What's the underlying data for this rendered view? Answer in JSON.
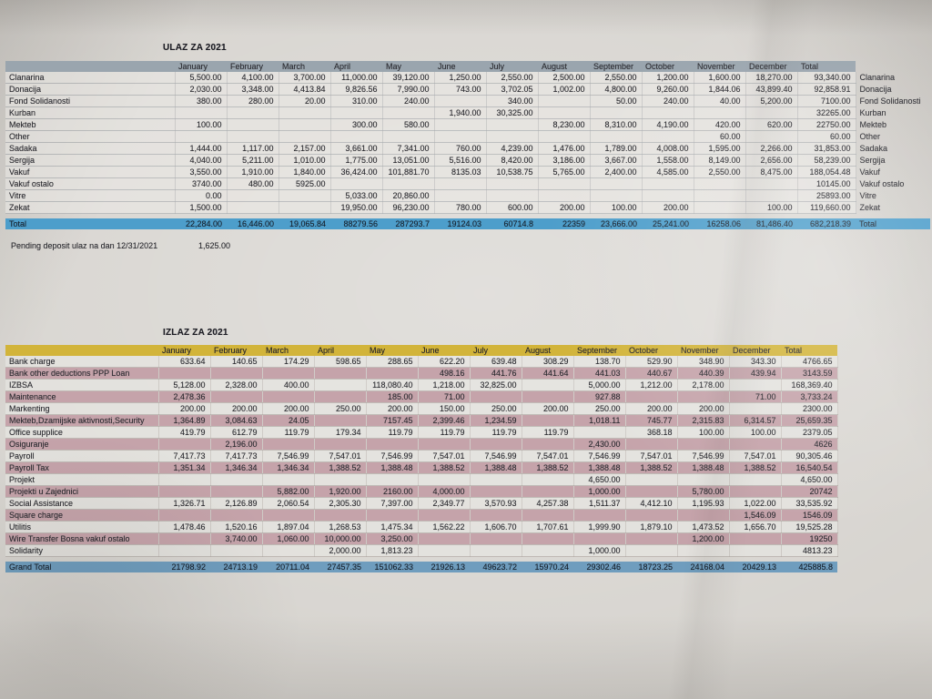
{
  "colors": {
    "paper": "#d5d2cd",
    "ink": "#2b2b30",
    "ulaz_header_bg": "#9aa5ae",
    "ulaz_total_bg": "#4d9ecb",
    "izlaz_header_bg": "#d2b43a",
    "izlaz_alt_bg": "#c5a3aa",
    "izlaz_total_bg": "#6f9dbe"
  },
  "months": [
    "January",
    "February",
    "March",
    "April",
    "May",
    "June",
    "July",
    "August",
    "September",
    "October",
    "November",
    "December"
  ],
  "ulaz": {
    "title": "ULAZ ZA 2021",
    "total_header": "Total",
    "rows": [
      {
        "label": "Clanarina",
        "values": [
          "5,500.00",
          "4,100.00",
          "3,700.00",
          "11,000.00",
          "39,120.00",
          "1,250.00",
          "2,550.00",
          "2,500.00",
          "2,550.00",
          "1,200.00",
          "1,600.00",
          "18,270.00"
        ],
        "total": "93,340.00"
      },
      {
        "label": "Donacija",
        "values": [
          "2,030.00",
          "3,348.00",
          "4,413.84",
          "9,826.56",
          "7,990.00",
          "743.00",
          "3,702.05",
          "1,002.00",
          "4,800.00",
          "9,260.00",
          "1,844.06",
          "43,899.40"
        ],
        "total": "92,858.91"
      },
      {
        "label": "Fond Solidanosti",
        "values": [
          "380.00",
          "280.00",
          "20.00",
          "310.00",
          "240.00",
          "",
          "340.00",
          "",
          "50.00",
          "240.00",
          "40.00",
          "5,200.00"
        ],
        "total": "7100.00"
      },
      {
        "label": "Kurban",
        "values": [
          "",
          "",
          "",
          "",
          "",
          "1,940.00",
          "30,325.00",
          "",
          "",
          "",
          "",
          ""
        ],
        "total": "32265.00"
      },
      {
        "label": "Mekteb",
        "values": [
          "100.00",
          "",
          "",
          "300.00",
          "580.00",
          "",
          "",
          "8,230.00",
          "8,310.00",
          "4,190.00",
          "420.00",
          "620.00"
        ],
        "total": "22750.00"
      },
      {
        "label": "Other",
        "values": [
          "",
          "",
          "",
          "",
          "",
          "",
          "",
          "",
          "",
          "",
          "60.00",
          ""
        ],
        "total": "60.00"
      },
      {
        "label": "Sadaka",
        "values": [
          "1,444.00",
          "1,117.00",
          "2,157.00",
          "3,661.00",
          "7,341.00",
          "760.00",
          "4,239.00",
          "1,476.00",
          "1,789.00",
          "4,008.00",
          "1,595.00",
          "2,266.00"
        ],
        "total": "31,853.00"
      },
      {
        "label": "Sergija",
        "values": [
          "4,040.00",
          "5,211.00",
          "1,010.00",
          "1,775.00",
          "13,051.00",
          "5,516.00",
          "8,420.00",
          "3,186.00",
          "3,667.00",
          "1,558.00",
          "8,149.00",
          "2,656.00"
        ],
        "total": "58,239.00"
      },
      {
        "label": "Vakuf",
        "values": [
          "3,550.00",
          "1,910.00",
          "1,840.00",
          "36,424.00",
          "101,881.70",
          "8135.03",
          "10,538.75",
          "5,765.00",
          "2,400.00",
          "4,585.00",
          "2,550.00",
          "8,475.00"
        ],
        "total": "188,054.48"
      },
      {
        "label": "Vakuf ostalo",
        "values": [
          "3740.00",
          "480.00",
          "5925.00",
          "",
          "",
          "",
          "",
          "",
          "",
          "",
          "",
          ""
        ],
        "total": "10145.00"
      },
      {
        "label": "Vitre",
        "values": [
          "0.00",
          "",
          "",
          "5,033.00",
          "20,860.00",
          "",
          "",
          "",
          "",
          "",
          "",
          ""
        ],
        "total": "25893.00"
      },
      {
        "label": "Zekat",
        "values": [
          "1,500.00",
          "",
          "",
          "19,950.00",
          "96,230.00",
          "780.00",
          "600.00",
          "200.00",
          "100.00",
          "200.00",
          "",
          "100.00"
        ],
        "total": "119,660.00"
      }
    ],
    "total_row": {
      "label": "Total",
      "values": [
        "22,284.00",
        "16,446.00",
        "19,065.84",
        "88279.56",
        "287293.7",
        "19124.03",
        "60714.8",
        "22359",
        "23,666.00",
        "25,241.00",
        "16258.06",
        "81,486.40"
      ],
      "total": "682,218.39",
      "label_right": "Total"
    },
    "pending": {
      "label": "Pending deposit ulaz na dan 12/31/2021",
      "value": "1,625.00"
    }
  },
  "izlaz": {
    "title": "IZLAZ ZA 2021",
    "total_header": "Total",
    "rows": [
      {
        "label": "Bank charge",
        "values": [
          "633.64",
          "140.65",
          "174.29",
          "598.65",
          "288.65",
          "622.20",
          "639.48",
          "308.29",
          "138.70",
          "529.90",
          "348.90",
          "343.30"
        ],
        "total": "4766.65"
      },
      {
        "label": "Bank other deductions PPP Loan",
        "values": [
          "",
          "",
          "",
          "",
          "",
          "498.16",
          "441.76",
          "441.64",
          "441.03",
          "440.67",
          "440.39",
          "439.94"
        ],
        "total": "3143.59"
      },
      {
        "label": "IZBSA",
        "values": [
          "5,128.00",
          "2,328.00",
          "400.00",
          "",
          "118,080.40",
          "1,218.00",
          "32,825.00",
          "",
          "5,000.00",
          "1,212.00",
          "2,178.00",
          ""
        ],
        "total": "168,369.40"
      },
      {
        "label": "Maintenance",
        "values": [
          "2,478.36",
          "",
          "",
          "",
          "185.00",
          "71.00",
          "",
          "",
          "927.88",
          "",
          "",
          "71.00"
        ],
        "total": "3,733.24"
      },
      {
        "label": "Markenting",
        "values": [
          "200.00",
          "200.00",
          "200.00",
          "250.00",
          "200.00",
          "150.00",
          "250.00",
          "200.00",
          "250.00",
          "200.00",
          "200.00",
          ""
        ],
        "total": "2300.00"
      },
      {
        "label": "Mekteb,Dzamijske aktivnosti,Security",
        "values": [
          "1,364.89",
          "3,084.63",
          "24.05",
          "",
          "7157.45",
          "2,399.46",
          "1,234.59",
          "",
          "1,018.11",
          "745.77",
          "2,315.83",
          "6,314.57"
        ],
        "total": "25,659.35"
      },
      {
        "label": "Office supplice",
        "values": [
          "419.79",
          "612.79",
          "119.79",
          "179.34",
          "119.79",
          "119.79",
          "119.79",
          "119.79",
          "",
          "368.18",
          "100.00",
          "100.00"
        ],
        "total": "2379.05"
      },
      {
        "label": "Osiguranje",
        "values": [
          "",
          "2,196.00",
          "",
          "",
          "",
          "",
          "",
          "",
          "2,430.00",
          "",
          "",
          ""
        ],
        "total": "4626"
      },
      {
        "label": "Payroll",
        "values": [
          "7,417.73",
          "7,417.73",
          "7,546.99",
          "7,547.01",
          "7,546.99",
          "7,547.01",
          "7,546.99",
          "7,547.01",
          "7,546.99",
          "7,547.01",
          "7,546.99",
          "7,547.01"
        ],
        "total": "90,305.46"
      },
      {
        "label": "Payroll Tax",
        "values": [
          "1,351.34",
          "1,346.34",
          "1,346.34",
          "1,388.52",
          "1,388.48",
          "1,388.52",
          "1,388.48",
          "1,388.52",
          "1,388.48",
          "1,388.52",
          "1,388.48",
          "1,388.52"
        ],
        "total": "16,540.54"
      },
      {
        "label": "Projekt",
        "values": [
          "",
          "",
          "",
          "",
          "",
          "",
          "",
          "",
          "4,650.00",
          "",
          "",
          ""
        ],
        "total": "4,650.00"
      },
      {
        "label": "Projekti u Zajednici",
        "values": [
          "",
          "",
          "5,882.00",
          "1,920.00",
          "2160.00",
          "4,000.00",
          "",
          "",
          "1,000.00",
          "",
          "5,780.00",
          ""
        ],
        "total": "20742"
      },
      {
        "label": "Social Assistance",
        "values": [
          "1,326.71",
          "2,126.89",
          "2,060.54",
          "2,305.30",
          "7,397.00",
          "2,349.77",
          "3,570.93",
          "4,257.38",
          "1,511.37",
          "4,412.10",
          "1,195.93",
          "1,022.00"
        ],
        "total": "33,535.92"
      },
      {
        "label": "Square charge",
        "values": [
          "",
          "",
          "",
          "",
          "",
          "",
          "",
          "",
          "",
          "",
          "",
          "1,546.09"
        ],
        "total": "1546.09"
      },
      {
        "label": "Utilitis",
        "values": [
          "1,478.46",
          "1,520.16",
          "1,897.04",
          "1,268.53",
          "1,475.34",
          "1,562.22",
          "1,606.70",
          "1,707.61",
          "1,999.90",
          "1,879.10",
          "1,473.52",
          "1,656.70"
        ],
        "total": "19,525.28"
      },
      {
        "label": "Wire Transfer Bosna vakuf ostalo",
        "values": [
          "",
          "3,740.00",
          "1,060.00",
          "10,000.00",
          "3,250.00",
          "",
          "",
          "",
          "",
          "",
          "1,200.00",
          ""
        ],
        "total": "19250"
      },
      {
        "label": "Solidarity",
        "values": [
          "",
          "",
          "",
          "2,000.00",
          "1,813.23",
          "",
          "",
          "",
          "1,000.00",
          "",
          "",
          ""
        ],
        "total": "4813.23"
      }
    ],
    "total_row": {
      "label": "Grand Total",
      "values": [
        "21798.92",
        "24713.19",
        "20711.04",
        "27457.35",
        "151062.33",
        "21926.13",
        "49623.72",
        "15970.24",
        "29302.46",
        "18723.25",
        "24168.04",
        "20429.13"
      ],
      "total": "425885.8",
      "label_right": ""
    }
  }
}
